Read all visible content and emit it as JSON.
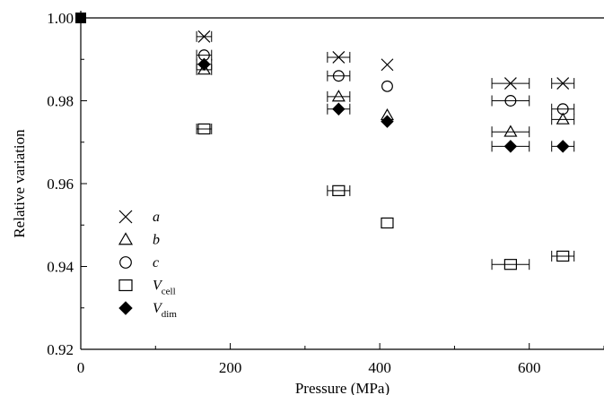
{
  "chart_data": {
    "type": "scatter",
    "title": "",
    "xlabel": "Pressure (MPa)",
    "ylabel": "Relative variation",
    "xlim": [
      0,
      700
    ],
    "ylim": [
      0.92,
      1.0
    ],
    "xticks": [
      "0",
      "200",
      "400",
      "600"
    ],
    "yticks": [
      "0.92",
      "0.94",
      "0.96",
      "0.98",
      "1.00"
    ],
    "reference_line": 1.0,
    "legend_position": "left",
    "series": [
      {
        "name": "a",
        "marker": "cross",
        "x": [
          0,
          165,
          345,
          410,
          575,
          645
        ],
        "y": [
          1.0,
          0.9955,
          0.9905,
          0.9887,
          0.9842,
          0.9842
        ]
      },
      {
        "name": "b",
        "marker": "triangle",
        "x": [
          0,
          165,
          345,
          410,
          575,
          645
        ],
        "y": [
          1.0,
          0.9875,
          0.981,
          0.9765,
          0.9725,
          0.9755
        ]
      },
      {
        "name": "c",
        "marker": "circle",
        "x": [
          0,
          165,
          345,
          410,
          575,
          645
        ],
        "y": [
          1.0,
          0.991,
          0.986,
          0.9835,
          0.98,
          0.978
        ]
      },
      {
        "name": "V",
        "subscript": "cell",
        "marker": "square",
        "x": [
          0,
          165,
          345,
          410,
          575,
          645
        ],
        "y": [
          1.0,
          0.9732,
          0.9583,
          0.9505,
          0.9405,
          0.9425
        ]
      },
      {
        "name": "V",
        "subscript": "dim",
        "marker": "diamond",
        "x": [
          0,
          165,
          345,
          410,
          575,
          645
        ],
        "y": [
          1.0,
          0.9888,
          0.978,
          0.975,
          0.969,
          0.969
        ]
      }
    ],
    "x_error": [
      0,
      10,
      15,
      0,
      25,
      15
    ]
  }
}
